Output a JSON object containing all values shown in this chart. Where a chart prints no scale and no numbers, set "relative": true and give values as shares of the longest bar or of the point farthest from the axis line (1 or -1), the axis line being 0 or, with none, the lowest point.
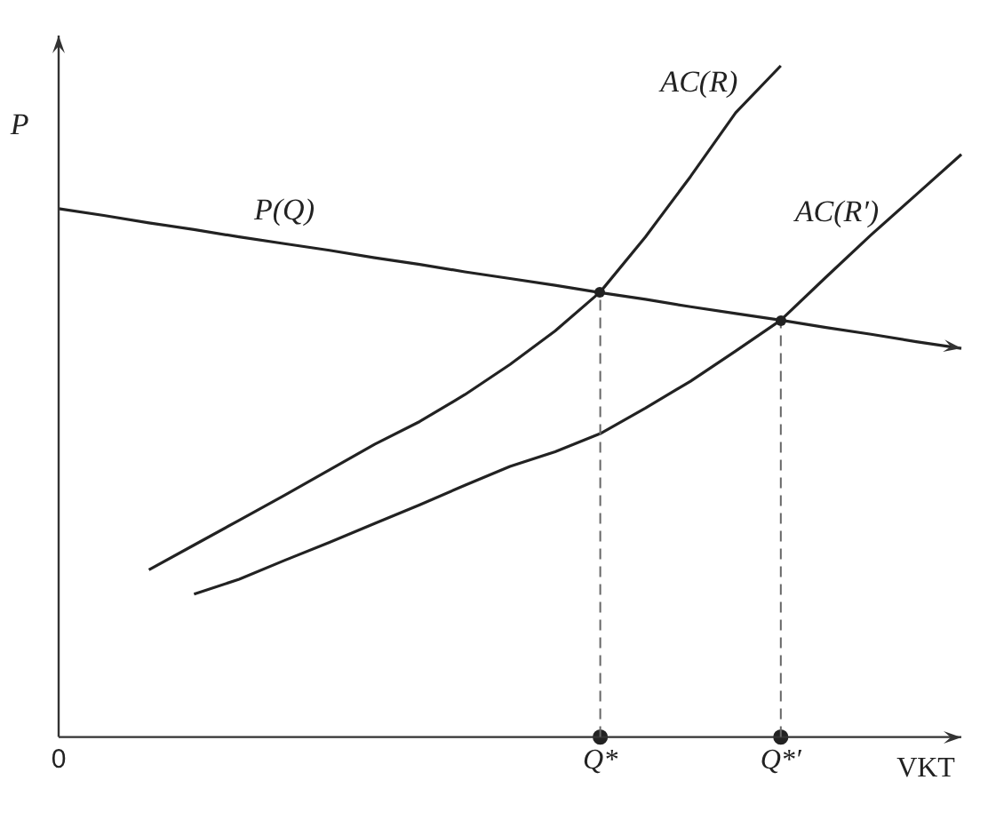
{
  "chart_data": {
    "type": "line",
    "relative": true,
    "xlabel": "VKT",
    "ylabel": "P",
    "categories": [
      "0",
      null,
      null,
      null,
      null,
      null,
      null,
      null,
      null,
      null,
      null,
      null,
      "Q*",
      null,
      null,
      null,
      "Q*′",
      null,
      null,
      null,
      null
    ],
    "grid": false,
    "legend": false,
    "marker": "none",
    "line_style": "solid",
    "series": [
      {
        "name": "P(Q)",
        "color": "#222222",
        "values": [
          0.787,
          0.777,
          0.766,
          0.756,
          0.745,
          0.735,
          0.725,
          0.714,
          0.704,
          0.693,
          0.683,
          0.673,
          0.662,
          0.652,
          0.641,
          0.631,
          0.621,
          0.61,
          0.6,
          0.589,
          0.579
        ]
      },
      {
        "name": "AC(R)",
        "color": "#222222",
        "values": [
          null,
          null,
          0.249,
          0.286,
          0.323,
          0.36,
          0.398,
          0.436,
          0.47,
          0.51,
          0.555,
          0.605,
          0.663,
          0.745,
          0.835,
          0.93,
          1.0,
          null,
          null,
          null,
          null
        ]
      },
      {
        "type": "scatter",
        "marker": "circle",
        "color": "#222222",
        "values": [
          null,
          null,
          null,
          null,
          null,
          null,
          null,
          null,
          null,
          null,
          null,
          null,
          0,
          null,
          null,
          null,
          0,
          null,
          null,
          null,
          null
        ]
      },
      {
        "name": "AC(R′)",
        "color": "#222222",
        "values": [
          null,
          null,
          null,
          0.213,
          0.235,
          0.263,
          0.29,
          0.318,
          0.346,
          0.375,
          0.403,
          0.425,
          0.452,
          0.49,
          0.53,
          0.575,
          0.621,
          0.685,
          0.748,
          0.808,
          0.868
        ]
      }
    ],
    "ref_lines": [
      {
        "axis": "x",
        "value": "Q*",
        "color": "#666666",
        "line_style": "dashed"
      },
      {
        "axis": "x",
        "value": "Q*′",
        "color": "#666666",
        "line_style": "dashed"
      }
    ]
  }
}
